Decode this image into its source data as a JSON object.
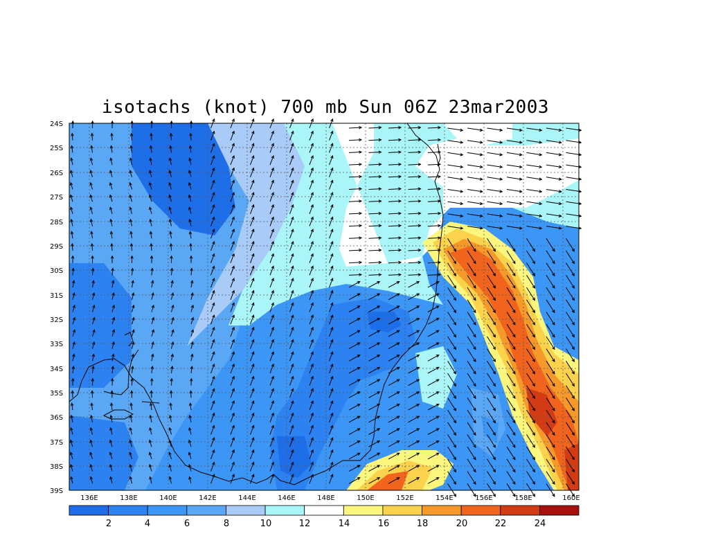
{
  "title": "isotachs (knot) 700 mb Sun 06Z 23mar2003",
  "lat_labels": [
    "24S",
    "25S",
    "26S",
    "27S",
    "28S",
    "29S",
    "30S",
    "31S",
    "32S",
    "33S",
    "34S",
    "35S",
    "36S",
    "37S",
    "38S",
    "39S"
  ],
  "lon_labels": [
    "136E",
    "138E",
    "140E",
    "142E",
    "144E",
    "146E",
    "148E",
    "150E",
    "152E",
    "154E",
    "156E",
    "158E",
    "160E"
  ],
  "colorbar": {
    "labels": [
      "2",
      "4",
      "6",
      "8",
      "10",
      "12",
      "14",
      "16",
      "18",
      "20",
      "22",
      "24"
    ],
    "colors": [
      "#1e6ee8",
      "#2b82f0",
      "#3c96f5",
      "#5aa8f5",
      "#a9cbf7",
      "#aaf5f7",
      "#ffffff",
      "#fbf77e",
      "#fbd24c",
      "#f59a2a",
      "#f0641e",
      "#d23c14",
      "#a81010"
    ]
  },
  "legend": {
    "palette": [
      "#1e6ee8",
      "#3c96f5",
      "#5aa8f5",
      "#a9cbf7",
      "#aaf5f7",
      "#ffffff",
      "#fbf77e",
      "#fbd24c",
      "#f59a2a",
      "#f0641e"
    ]
  }
}
